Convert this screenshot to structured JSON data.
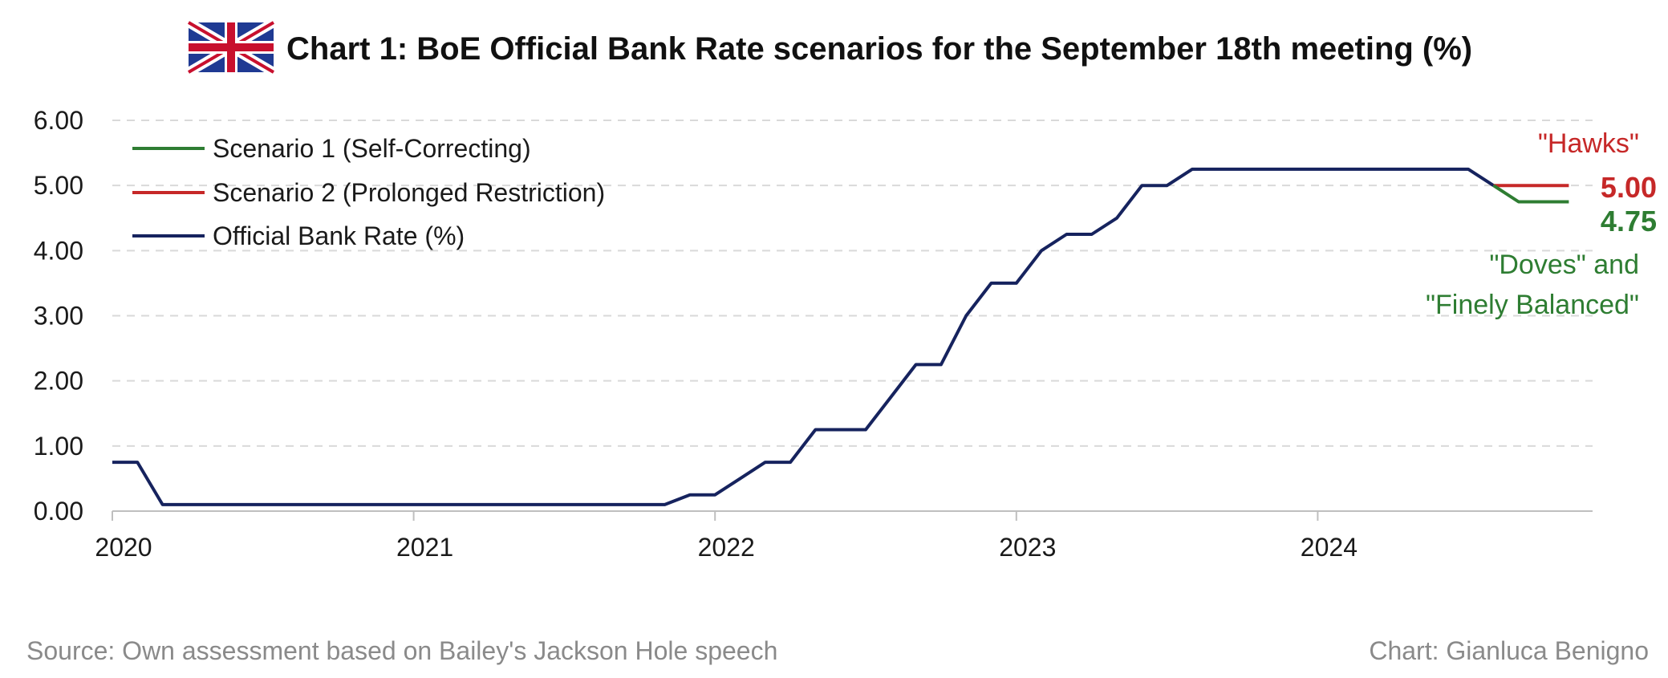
{
  "title": "Chart 1: BoE Official Bank Rate scenarios for the September 18th meeting (%)",
  "flag_icon": "uk-flag-icon",
  "colors": {
    "official": "#16235e",
    "scenario1": "#2e7d32",
    "scenario2": "#c62828",
    "grid": "#d9d9d9",
    "footer": "#8a8a8a"
  },
  "legend": [
    {
      "label": "Scenario 1 (Self-Correcting)",
      "color": "#2e7d32"
    },
    {
      "label": "Scenario 2 (Prolonged Restriction)",
      "color": "#c62828"
    },
    {
      "label": "Official Bank Rate (%)",
      "color": "#16235e"
    }
  ],
  "annotations": {
    "hawks": "\"Hawks\"",
    "doves_line1": "\"Doves\" and",
    "doves_line2": "\"Finely Balanced\"",
    "end_value_s2": "5.00",
    "end_value_s1": "4.75"
  },
  "footer": {
    "source": "Source: Own assessment based on Bailey's Jackson Hole speech",
    "credit": "Chart: Gianluca Benigno"
  },
  "chart_data": {
    "type": "line",
    "title": "Chart 1: BoE Official Bank Rate scenarios for the September 18th meeting (%)",
    "xlabel": "",
    "ylabel": "",
    "ylim": [
      0,
      6
    ],
    "xlim": [
      "2020-01",
      "2024-11"
    ],
    "yticks": [
      "0.00",
      "1.00",
      "2.00",
      "3.00",
      "4.00",
      "5.00",
      "6.00"
    ],
    "xticks": [
      {
        "value": "2020-01",
        "label": "2020"
      },
      {
        "value": "2021-01",
        "label": "2021"
      },
      {
        "value": "2022-01",
        "label": "2022"
      },
      {
        "value": "2023-01",
        "label": "2023"
      },
      {
        "value": "2024-01",
        "label": "2024"
      }
    ],
    "grid": "horizontal dashed",
    "legend_position": "top-left",
    "series": [
      {
        "name": "Official Bank Rate (%)",
        "color": "#16235e",
        "points": [
          [
            "2020-01",
            0.75
          ],
          [
            "2020-02",
            0.75
          ],
          [
            "2020-03",
            0.1
          ],
          [
            "2020-04",
            0.1
          ],
          [
            "2020-12",
            0.1
          ],
          [
            "2021-06",
            0.1
          ],
          [
            "2021-11",
            0.1
          ],
          [
            "2021-12",
            0.25
          ],
          [
            "2022-01",
            0.25
          ],
          [
            "2022-02",
            0.5
          ],
          [
            "2022-03",
            0.75
          ],
          [
            "2022-04",
            0.75
          ],
          [
            "2022-05",
            1.25
          ],
          [
            "2022-06",
            1.25
          ],
          [
            "2022-07",
            1.25
          ],
          [
            "2022-08",
            1.75
          ],
          [
            "2022-09",
            2.25
          ],
          [
            "2022-10",
            2.25
          ],
          [
            "2022-11",
            3.0
          ],
          [
            "2022-12",
            3.5
          ],
          [
            "2023-01",
            3.5
          ],
          [
            "2023-02",
            4.0
          ],
          [
            "2023-03",
            4.25
          ],
          [
            "2023-04",
            4.25
          ],
          [
            "2023-05",
            4.5
          ],
          [
            "2023-06",
            5.0
          ],
          [
            "2023-07",
            5.0
          ],
          [
            "2023-08",
            5.25
          ],
          [
            "2023-12",
            5.25
          ],
          [
            "2024-04",
            5.25
          ],
          [
            "2024-07",
            5.25
          ],
          [
            "2024-08",
            5.0
          ]
        ]
      },
      {
        "name": "Scenario 2 (Prolonged Restriction)",
        "color": "#c62828",
        "points": [
          [
            "2024-08",
            5.0
          ],
          [
            "2024-09",
            5.0
          ],
          [
            "2024-10",
            5.0
          ],
          [
            "2024-11",
            5.0
          ]
        ]
      },
      {
        "name": "Scenario 1 (Self-Correcting)",
        "color": "#2e7d32",
        "points": [
          [
            "2024-08",
            5.0
          ],
          [
            "2024-09",
            4.75
          ],
          [
            "2024-10",
            4.75
          ],
          [
            "2024-11",
            4.75
          ]
        ]
      }
    ]
  }
}
